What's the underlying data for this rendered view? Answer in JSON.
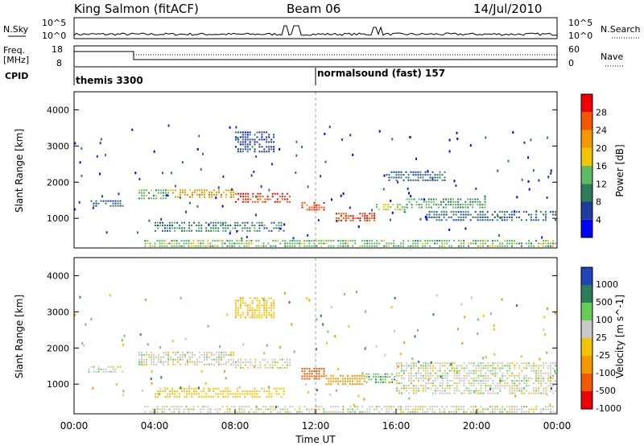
{
  "header": {
    "station": "King Salmon (fitACF)",
    "beam": "Beam 06",
    "date": "14/Jul/2010"
  },
  "noise_panel": {
    "left_label": "N.Sky",
    "right_label": "N.Search",
    "tick_top": "10^5",
    "tick_bottom": "10^0"
  },
  "freq_panel": {
    "left_label_1": "Freq.",
    "left_label_2": "[MHz]",
    "left_tick_top": "18",
    "left_tick_bottom": "8",
    "right_label": "Nave",
    "right_tick_top": "60",
    "right_tick_bottom": "0"
  },
  "cpid_panel": {
    "label": "CPID",
    "modes": [
      {
        "name": "themis 3300",
        "start_hour": 0
      },
      {
        "name": "normalsound (fast) 157",
        "start_hour": 12
      }
    ]
  },
  "colors": {
    "power_scale": [
      "#0000ff",
      "#1e3c9c",
      "#2e7d5a",
      "#5dbb63",
      "#f5c400",
      "#f39a00",
      "#f35a00",
      "#f20000"
    ],
    "velocity_scale": [
      "#2244bb",
      "#2e7d5a",
      "#66cc55",
      "#c8c8c8",
      "#f5c400",
      "#f39a00",
      "#f35a00",
      "#ee0000"
    ]
  },
  "chart_data": [
    {
      "type": "heatmap",
      "name": "Power",
      "ylabel": "Slant Range [km]",
      "xlabel": "",
      "xlim": [
        0,
        24
      ],
      "ylim": [
        180,
        4500
      ],
      "y_ticks": [
        "1000",
        "2000",
        "3000",
        "4000"
      ],
      "colorbar_label": "Power [dB]",
      "colorbar_ticks": [
        "4",
        "8",
        "12",
        "16",
        "20",
        "24",
        "28"
      ],
      "colorbar_range": [
        0,
        32
      ],
      "echo_regions": [
        {
          "t0": 0.7,
          "t1": 2.5,
          "r0": 1300,
          "r1": 1500,
          "value": 8
        },
        {
          "t0": 3.2,
          "t1": 5.0,
          "r0": 1500,
          "r1": 1800,
          "value": 14
        },
        {
          "t0": 5.0,
          "t1": 8.0,
          "r0": 1550,
          "r1": 1800,
          "value": 22
        },
        {
          "t0": 8.0,
          "t1": 10.8,
          "r0": 1400,
          "r1": 1700,
          "value": 28
        },
        {
          "t0": 11.3,
          "t1": 12.5,
          "r0": 1200,
          "r1": 1450,
          "value": 26
        },
        {
          "t0": 13.0,
          "t1": 15.0,
          "r0": 900,
          "r1": 1150,
          "value": 28
        },
        {
          "t0": 15.0,
          "t1": 16.5,
          "r0": 1200,
          "r1": 1400,
          "value": 16
        },
        {
          "t0": 16.5,
          "t1": 20.5,
          "r0": 1250,
          "r1": 1550,
          "value": 12
        },
        {
          "t0": 17.5,
          "t1": 24.0,
          "r0": 900,
          "r1": 1200,
          "value": 8
        },
        {
          "t0": 15.5,
          "t1": 18.5,
          "r0": 2000,
          "r1": 2300,
          "value": 8
        },
        {
          "t0": 4.0,
          "t1": 10.5,
          "r0": 600,
          "r1": 900,
          "value": 10
        },
        {
          "t0": 8.0,
          "t1": 10.0,
          "r0": 2800,
          "r1": 3400,
          "value": 6
        },
        {
          "t0": 3.5,
          "t1": 24.0,
          "r0": 180,
          "r1": 400,
          "value": 14
        }
      ]
    },
    {
      "type": "heatmap",
      "name": "Velocity",
      "ylabel": "Slant Range [km]",
      "xlabel": "Time UT",
      "xlim": [
        0,
        24
      ],
      "ylim": [
        180,
        4500
      ],
      "x_ticks": [
        "00:00",
        "04:00",
        "08:00",
        "12:00",
        "16:00",
        "20:00",
        "00:00"
      ],
      "y_ticks": [
        "1000",
        "2000",
        "3000",
        "4000"
      ],
      "colorbar_label": "Velocity [m s^-1]",
      "colorbar_ticks": [
        "1000",
        "500",
        "100",
        "25",
        "-25",
        "-100",
        "-500",
        "-1000"
      ],
      "echo_regions": [
        {
          "t0": 0.7,
          "t1": 2.5,
          "r0": 1300,
          "r1": 1500,
          "value": 0
        },
        {
          "t0": 3.2,
          "t1": 8.0,
          "r0": 1500,
          "r1": 1900,
          "value": 0
        },
        {
          "t0": 8.0,
          "t1": 10.8,
          "r0": 1400,
          "r1": 1700,
          "value": 0
        },
        {
          "t0": 11.3,
          "t1": 12.5,
          "r0": 1100,
          "r1": 1450,
          "value": -600
        },
        {
          "t0": 12.5,
          "t1": 14.5,
          "r0": 950,
          "r1": 1250,
          "value": -250
        },
        {
          "t0": 14.5,
          "t1": 16.0,
          "r0": 1000,
          "r1": 1300,
          "value": 80
        },
        {
          "t0": 16.0,
          "t1": 24.0,
          "r0": 700,
          "r1": 1600,
          "value": 0
        },
        {
          "t0": 4.0,
          "t1": 10.5,
          "r0": 600,
          "r1": 900,
          "value": -60
        },
        {
          "t0": 8.0,
          "t1": 10.0,
          "r0": 2800,
          "r1": 3400,
          "value": -80
        },
        {
          "t0": 3.5,
          "t1": 24.0,
          "r0": 180,
          "r1": 400,
          "value": 0
        }
      ]
    }
  ]
}
